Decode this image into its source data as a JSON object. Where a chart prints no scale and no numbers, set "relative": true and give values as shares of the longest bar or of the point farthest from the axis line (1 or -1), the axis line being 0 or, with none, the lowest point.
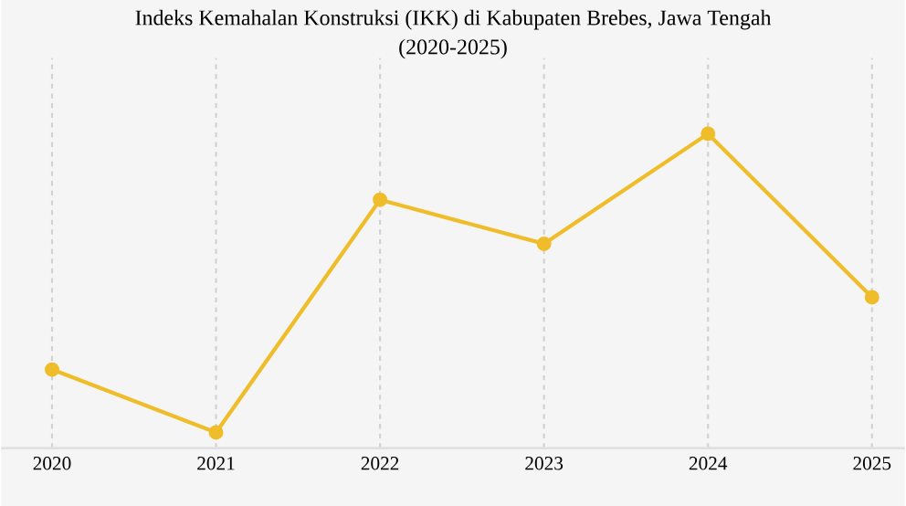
{
  "chart_data": {
    "type": "line",
    "title": "Indeks Kemahalan Konstruksi (IKK) di Kabupaten Brebes, Jawa Tengah",
    "subtitle": "(2020-2025)",
    "categories": [
      "2020",
      "2021",
      "2022",
      "2023",
      "2024",
      "2025"
    ],
    "series": [
      {
        "color": "#f0bd2a",
        "values": [
          0.25,
          0.05,
          0.79,
          0.65,
          1,
          0.48
        ]
      }
    ],
    "relative": true,
    "grid": "x",
    "marker": "circle",
    "line_style": "solid"
  }
}
